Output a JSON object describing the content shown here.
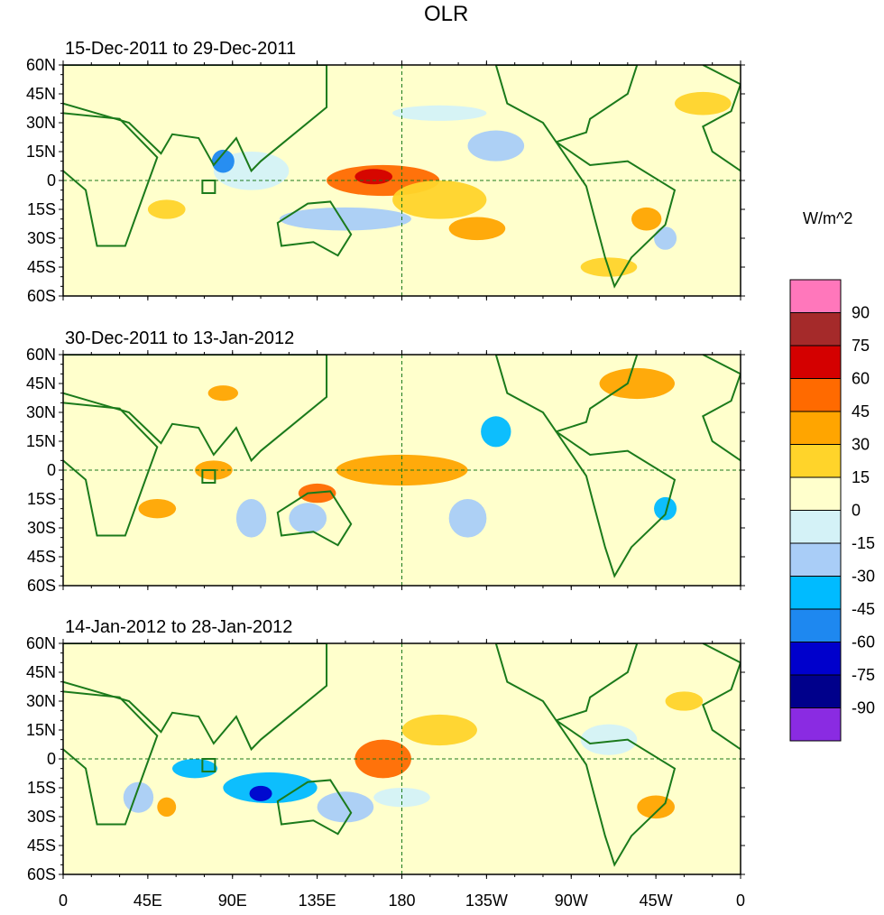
{
  "chart_data": {
    "type": "heatmap",
    "title": "OLR",
    "units": "W/m^2",
    "colorbar": {
      "levels": [
        "90",
        "75",
        "60",
        "45",
        "30",
        "15",
        "0",
        "-15",
        "-30",
        "-45",
        "-60",
        "-75",
        "-90"
      ],
      "colors": [
        "#ff77bb",
        "#a52a2a",
        "#d40000",
        "#ff6a00",
        "#ffa500",
        "#ffd42a",
        "#ffffcc",
        "#d4f2f7",
        "#a9cdf7",
        "#00bbff",
        "#1e88f0",
        "#0000cc",
        "#00008b",
        "#8a2be2"
      ]
    },
    "lat_labels": [
      "60N",
      "45N",
      "30N",
      "15N",
      "0",
      "15S",
      "30S",
      "45S",
      "60S"
    ],
    "lat_values": [
      60,
      45,
      30,
      15,
      0,
      -15,
      -30,
      -45,
      -60
    ],
    "lon_labels": [
      "0",
      "45E",
      "90E",
      "135E",
      "180",
      "135W",
      "90W",
      "45W",
      "0"
    ],
    "lon_values": [
      0,
      45,
      90,
      135,
      180,
      225,
      270,
      315,
      360
    ],
    "ylim": [
      -60,
      60
    ],
    "xlim": [
      0,
      360
    ],
    "panels": [
      {
        "name": "panel-1",
        "period": "15-Dec-2011 to 29-Dec-2011",
        "anomalies": [
          {
            "lon": 170,
            "lat": 0,
            "rx": 30,
            "ry": 8,
            "level": 45
          },
          {
            "lon": 165,
            "lat": 2,
            "rx": 10,
            "ry": 4,
            "level": 60
          },
          {
            "lon": 200,
            "lat": -10,
            "rx": 25,
            "ry": 10,
            "level": 15
          },
          {
            "lon": 220,
            "lat": -25,
            "rx": 15,
            "ry": 6,
            "level": 30
          },
          {
            "lon": 230,
            "lat": 18,
            "rx": 15,
            "ry": 8,
            "level": -30
          },
          {
            "lon": 150,
            "lat": -20,
            "rx": 35,
            "ry": 6,
            "level": -30
          },
          {
            "lon": 100,
            "lat": 5,
            "rx": 20,
            "ry": 10,
            "level": -15
          },
          {
            "lon": 85,
            "lat": 10,
            "rx": 6,
            "ry": 6,
            "level": -60
          },
          {
            "lon": 310,
            "lat": -20,
            "rx": 8,
            "ry": 6,
            "level": 30
          },
          {
            "lon": 290,
            "lat": -45,
            "rx": 15,
            "ry": 5,
            "level": 15
          },
          {
            "lon": 55,
            "lat": -15,
            "rx": 10,
            "ry": 5,
            "level": 15
          },
          {
            "lon": 340,
            "lat": 40,
            "rx": 15,
            "ry": 6,
            "level": 15
          },
          {
            "lon": 200,
            "lat": 35,
            "rx": 25,
            "ry": 4,
            "level": -15
          },
          {
            "lon": 320,
            "lat": -30,
            "rx": 6,
            "ry": 6,
            "level": -30
          }
        ]
      },
      {
        "name": "panel-2",
        "period": "30-Dec-2011 to 13-Jan-2012",
        "anomalies": [
          {
            "lon": 180,
            "lat": 0,
            "rx": 35,
            "ry": 8,
            "level": 30
          },
          {
            "lon": 80,
            "lat": 0,
            "rx": 10,
            "ry": 5,
            "level": 30
          },
          {
            "lon": 135,
            "lat": -12,
            "rx": 10,
            "ry": 5,
            "level": 45
          },
          {
            "lon": 130,
            "lat": -25,
            "rx": 10,
            "ry": 8,
            "level": -30
          },
          {
            "lon": 230,
            "lat": 20,
            "rx": 8,
            "ry": 8,
            "level": -45
          },
          {
            "lon": 100,
            "lat": -25,
            "rx": 8,
            "ry": 10,
            "level": -30
          },
          {
            "lon": 215,
            "lat": -25,
            "rx": 10,
            "ry": 10,
            "level": -30
          },
          {
            "lon": 305,
            "lat": 45,
            "rx": 20,
            "ry": 8,
            "level": 30
          },
          {
            "lon": 50,
            "lat": -20,
            "rx": 10,
            "ry": 5,
            "level": 30
          },
          {
            "lon": 320,
            "lat": -20,
            "rx": 6,
            "ry": 6,
            "level": -45
          },
          {
            "lon": 85,
            "lat": 40,
            "rx": 8,
            "ry": 4,
            "level": 30
          }
        ]
      },
      {
        "name": "panel-3",
        "period": "14-Jan-2012 to 28-Jan-2012",
        "anomalies": [
          {
            "lon": 170,
            "lat": 0,
            "rx": 15,
            "ry": 10,
            "level": 45
          },
          {
            "lon": 200,
            "lat": 15,
            "rx": 20,
            "ry": 8,
            "level": 15
          },
          {
            "lon": 110,
            "lat": -15,
            "rx": 25,
            "ry": 8,
            "level": -45
          },
          {
            "lon": 105,
            "lat": -18,
            "rx": 6,
            "ry": 4,
            "level": -75
          },
          {
            "lon": 70,
            "lat": -5,
            "rx": 12,
            "ry": 5,
            "level": -45
          },
          {
            "lon": 150,
            "lat": -25,
            "rx": 15,
            "ry": 8,
            "level": -30
          },
          {
            "lon": 180,
            "lat": -20,
            "rx": 15,
            "ry": 5,
            "level": -15
          },
          {
            "lon": 315,
            "lat": -25,
            "rx": 10,
            "ry": 6,
            "level": 30
          },
          {
            "lon": 290,
            "lat": 10,
            "rx": 15,
            "ry": 8,
            "level": -15
          },
          {
            "lon": 40,
            "lat": -20,
            "rx": 8,
            "ry": 8,
            "level": -30
          },
          {
            "lon": 330,
            "lat": 30,
            "rx": 10,
            "ry": 5,
            "level": 15
          },
          {
            "lon": 55,
            "lat": -25,
            "rx": 5,
            "ry": 5,
            "level": 30
          }
        ]
      }
    ]
  }
}
